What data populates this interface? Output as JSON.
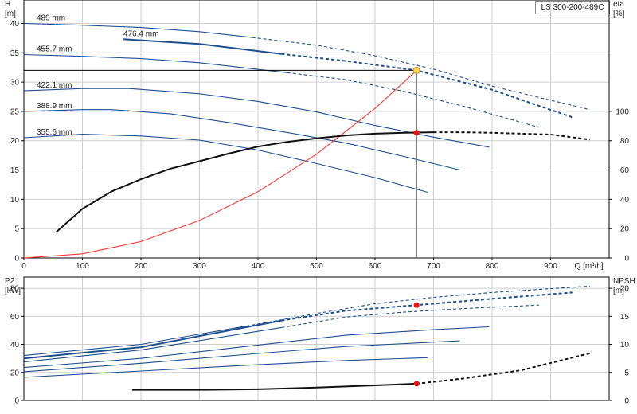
{
  "model_label": "LS 300-200-489C",
  "chart_data": [
    {
      "type": "line",
      "title": "",
      "xlabel": "Q [m³/h]",
      "ylabel": "H [m]",
      "ylabel_right": "eta [%]",
      "left_axis": {
        "name": "H",
        "unit": "[m]"
      },
      "right_axis": {
        "name": "eta",
        "unit": "[%]"
      },
      "xlim": [
        0,
        1000
      ],
      "ylim": [
        0,
        44
      ],
      "y2lim": [
        0,
        176
      ],
      "x_ticks": [
        "0",
        "100",
        "200",
        "300",
        "400",
        "500",
        "600",
        "700",
        "800",
        "900"
      ],
      "x_tick_values": [
        0,
        100,
        200,
        300,
        400,
        500,
        600,
        700,
        800,
        900
      ],
      "y_ticks": [
        "0",
        "5",
        "10",
        "15",
        "20",
        "25",
        "30",
        "35",
        "40"
      ],
      "y_tick_values": [
        0,
        5,
        10,
        15,
        20,
        25,
        30,
        35,
        40
      ],
      "y2_ticks": [
        "0",
        "20",
        "40",
        "60",
        "80",
        "100"
      ],
      "y2_tick_values": [
        0,
        20,
        40,
        60,
        80,
        100
      ],
      "grid": true,
      "series": [
        {
          "name": "489 mm",
          "color": "#1f4e8c",
          "solid_until": 390,
          "x": [
            0,
            100,
            200,
            300,
            390,
            500,
            600,
            700,
            800,
            967
          ],
          "y": [
            40.0,
            39.7,
            39.3,
            38.6,
            37.6,
            36.3,
            34.5,
            32.2,
            29.3,
            25.3
          ]
        },
        {
          "name": "476.4 mm",
          "color": "#1f4e8c",
          "solid_until": 440,
          "bold": true,
          "x": [
            170,
            300,
            440,
            550,
            671,
            800,
            937
          ],
          "y": [
            37.3,
            36.5,
            34.8,
            33.6,
            32.0,
            28.7,
            24.0
          ]
        },
        {
          "name": "455.7 mm",
          "color": "#1f4e8c",
          "solid_until": 450,
          "x": [
            0,
            100,
            200,
            300,
            450,
            550,
            650,
            750,
            880
          ],
          "y": [
            34.7,
            34.4,
            34.0,
            33.3,
            31.6,
            30.4,
            28.4,
            25.9,
            22.3
          ]
        },
        {
          "name": "422.1 mm",
          "color": "#1f4e8c",
          "solid_until": 795,
          "x": [
            0,
            100,
            180,
            300,
            400,
            500,
            600,
            700,
            795
          ],
          "y": [
            28.5,
            28.9,
            28.9,
            28.0,
            26.7,
            24.9,
            22.6,
            20.6,
            18.9
          ]
        },
        {
          "name": "388.9 mm",
          "color": "#1f4e8c",
          "solid_until": 745,
          "x": [
            0,
            100,
            150,
            250,
            350,
            450,
            550,
            650,
            745
          ],
          "y": [
            25.0,
            25.3,
            25.3,
            24.6,
            23.1,
            21.4,
            19.6,
            17.3,
            15.0
          ]
        },
        {
          "name": "355.6 mm",
          "color": "#1f4e8c",
          "solid_until": 690,
          "x": [
            0,
            100,
            200,
            300,
            400,
            500,
            600,
            690
          ],
          "y": [
            20.5,
            21.1,
            20.8,
            20.1,
            18.4,
            16.1,
            13.7,
            11.2
          ]
        },
        {
          "name": "system curve",
          "color": "#ff3333",
          "x": [
            0,
            100,
            200,
            300,
            400,
            500,
            600,
            671
          ],
          "y": [
            0,
            0.7,
            2.8,
            6.4,
            11.3,
            17.7,
            25.5,
            32.0
          ]
        },
        {
          "name": "efficiency",
          "axis": "right",
          "color": "#111111",
          "solid_until": 700,
          "bold": true,
          "x": [
            55,
            100,
            150,
            200,
            250,
            300,
            350,
            400,
            450,
            500,
            550,
            600,
            650,
            700,
            750,
            800,
            900,
            967
          ],
          "y": [
            17.5,
            33.5,
            45.4,
            53.8,
            60.9,
            66.0,
            71.2,
            76.0,
            79.2,
            81.6,
            83.6,
            84.8,
            85.4,
            85.8,
            85.8,
            85.4,
            84.2,
            80.8
          ]
        }
      ],
      "duty_point": {
        "x": 671,
        "y": 32.0
      },
      "efficiency_point": {
        "x": 671,
        "y": 85.4
      }
    },
    {
      "type": "line",
      "title": "",
      "ylabel": "P2 [kW]",
      "ylabel_right": "NPSH [m]",
      "left_axis": {
        "name": "P2",
        "unit": "[kW]"
      },
      "right_axis": {
        "name": "NPSH",
        "unit": "[m]"
      },
      "xlim": [
        0,
        1000
      ],
      "ylim": [
        0,
        88
      ],
      "y2lim": [
        0,
        22
      ],
      "y_ticks": [
        "0",
        "20",
        "40",
        "60",
        "80"
      ],
      "y_tick_values": [
        0,
        20,
        40,
        60,
        80
      ],
      "y2_ticks": [
        "0",
        "5",
        "10",
        "15",
        "20"
      ],
      "y2_tick_values": [
        0,
        5,
        10,
        15,
        20
      ],
      "grid": true,
      "series": [
        {
          "name": "P2 489 mm",
          "color": "#1f4e8c",
          "solid_until": 380,
          "x": [
            0,
            200,
            380,
            500,
            600,
            700,
            800,
            967
          ],
          "y": [
            32.0,
            40.0,
            53.0,
            62.0,
            69.0,
            73.5,
            77.0,
            81.5
          ]
        },
        {
          "name": "P2 476.4 mm",
          "color": "#1f4e8c",
          "solid_until": 440,
          "bold": true,
          "x": [
            0,
            200,
            440,
            550,
            671,
            800,
            937
          ],
          "y": [
            30.0,
            38.0,
            57.0,
            64.0,
            68.0,
            72.5,
            77.0
          ]
        },
        {
          "name": "P2 455.7 mm",
          "color": "#1f4e8c",
          "solid_until": 440,
          "x": [
            0,
            200,
            440,
            550,
            650,
            750,
            880
          ],
          "y": [
            27.5,
            36.0,
            52.0,
            59.5,
            63.0,
            65.5,
            68.0
          ]
        },
        {
          "name": "P2 422.1 mm",
          "color": "#1f4e8c",
          "x": [
            0,
            200,
            400,
            550,
            700,
            795
          ],
          "y": [
            23.5,
            30.0,
            39.5,
            46.5,
            50.5,
            52.5
          ]
        },
        {
          "name": "P2 388.9 mm",
          "color": "#1f4e8c",
          "x": [
            0,
            200,
            400,
            550,
            745
          ],
          "y": [
            20.5,
            26.5,
            33.5,
            38.5,
            42.5
          ]
        },
        {
          "name": "P2 355.6 mm",
          "color": "#1f4e8c",
          "x": [
            0,
            200,
            400,
            550,
            690
          ],
          "y": [
            16.5,
            21.0,
            25.5,
            28.5,
            30.5
          ]
        },
        {
          "name": "NPSH",
          "axis": "right",
          "color": "#111111",
          "solid_until": 700,
          "bold": true,
          "x": [
            185,
            300,
            400,
            500,
            600,
            671,
            750,
            850,
            967
          ],
          "y": [
            1.9,
            1.9,
            2.0,
            2.3,
            2.7,
            3.0,
            3.9,
            5.4,
            8.4
          ]
        }
      ],
      "duty_point": {
        "x": 671,
        "y": 68.0
      },
      "npsh_point": {
        "x": 671,
        "y": 3.0
      }
    }
  ]
}
